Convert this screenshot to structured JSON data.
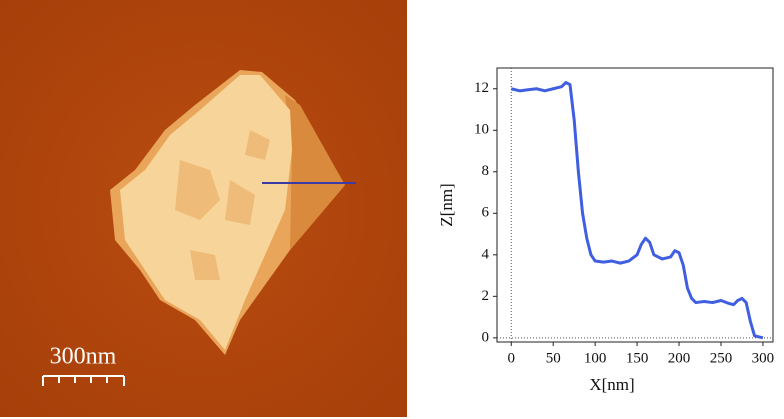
{
  "image_panel": {
    "scale_bar_label": "300nm"
  },
  "chart_data": {
    "type": "line",
    "xlabel": "X[nm]",
    "ylabel": "Z[nm]",
    "color": "#3f5fe0",
    "x": [
      0,
      10,
      20,
      30,
      40,
      50,
      60,
      65,
      70,
      75,
      80,
      85,
      90,
      95,
      100,
      110,
      120,
      130,
      140,
      150,
      155,
      160,
      165,
      170,
      180,
      190,
      195,
      200,
      205,
      210,
      215,
      220,
      230,
      240,
      250,
      260,
      265,
      270,
      275,
      280,
      285,
      290,
      295,
      300
    ],
    "values": [
      12.0,
      11.9,
      11.95,
      12.0,
      11.9,
      12.0,
      12.1,
      12.3,
      12.2,
      10.5,
      8.0,
      6.0,
      4.8,
      4.0,
      3.7,
      3.65,
      3.7,
      3.6,
      3.7,
      4.0,
      4.5,
      4.8,
      4.6,
      4.0,
      3.8,
      3.9,
      4.2,
      4.1,
      3.5,
      2.4,
      1.9,
      1.7,
      1.75,
      1.7,
      1.8,
      1.65,
      1.6,
      1.8,
      1.9,
      1.7,
      0.8,
      0.1,
      0.05,
      0.0
    ],
    "xlim": [
      -17,
      312
    ],
    "ylim": [
      -0.2,
      13
    ],
    "xticks": [
      0,
      50,
      100,
      150,
      200,
      250,
      300
    ],
    "yticks": [
      0,
      2,
      4,
      6,
      8,
      10,
      12
    ]
  }
}
